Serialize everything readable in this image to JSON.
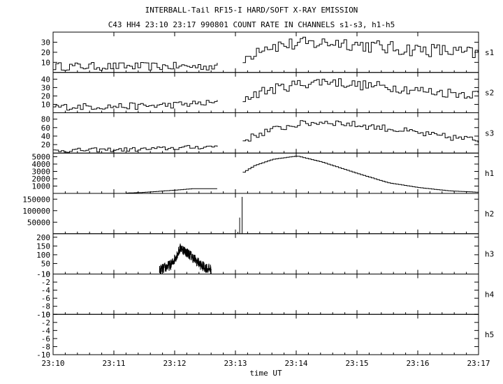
{
  "title_line1": "INTERBALL-Tail RF15-I HARD/SOFT X-RAY EMISSION",
  "title_line2": "C43 HH4 23:10 23:17 990801  COUNT RATE IN CHANNELS s1-s3, h1-h5",
  "chart_data": {
    "type": "line",
    "title": "INTERBALL-Tail RF15-I HARD/SOFT X-RAY EMISSION",
    "subtitle": "C43 HH4 23:10 23:17 990801  COUNT RATE IN CHANNELS s1-s3, h1-h5",
    "xlabel": "time UT",
    "x_range_minutes": [
      0,
      7
    ],
    "x_tick_labels": [
      "23:10",
      "23:11",
      "23:12",
      "23:13",
      "23:14",
      "23:15",
      "23:16",
      "23:17"
    ],
    "grid": false,
    "panels": [
      {
        "name": "s1",
        "ylim": [
          0,
          40
        ],
        "yticks": [
          10,
          20,
          30
        ],
        "kind": "step",
        "segments": [
          {
            "x_start": 0.0,
            "x_end": 2.7,
            "baseline": 6,
            "amp": 4
          },
          {
            "x_start": 3.12,
            "x_end": 7.0,
            "anchors": [
              [
                3.12,
                12
              ],
              [
                3.4,
                26
              ],
              [
                4.0,
                28
              ],
              [
                4.7,
                30
              ],
              [
                5.5,
                24
              ],
              [
                6.3,
                22
              ],
              [
                7.0,
                18
              ]
            ],
            "amp": 7
          }
        ]
      },
      {
        "name": "s2",
        "ylim": [
          0,
          48
        ],
        "yticks": [
          10,
          20,
          30,
          40
        ],
        "kind": "step",
        "segments": [
          {
            "x_start": 0.0,
            "x_end": 2.7,
            "anchors": [
              [
                0.0,
                7
              ],
              [
                1.5,
                8
              ],
              [
                2.7,
                12
              ]
            ],
            "amp": 4
          },
          {
            "x_start": 3.12,
            "x_end": 7.0,
            "anchors": [
              [
                3.12,
                17
              ],
              [
                3.4,
                25
              ],
              [
                4.0,
                34
              ],
              [
                4.5,
                38
              ],
              [
                5.0,
                33
              ],
              [
                5.5,
                31
              ],
              [
                6.2,
                25
              ],
              [
                7.0,
                22
              ]
            ],
            "amp": 6
          }
        ]
      },
      {
        "name": "s3",
        "ylim": [
          0,
          95
        ],
        "yticks": [
          20,
          40,
          60,
          80
        ],
        "kind": "step",
        "segments": [
          {
            "x_start": 0.0,
            "x_end": 2.7,
            "anchors": [
              [
                0.0,
                6
              ],
              [
                1.5,
                9
              ],
              [
                2.7,
                16
              ]
            ],
            "amp": 5
          },
          {
            "x_start": 3.12,
            "x_end": 7.0,
            "anchors": [
              [
                3.12,
                30
              ],
              [
                3.5,
                52
              ],
              [
                4.0,
                68
              ],
              [
                4.5,
                74
              ],
              [
                5.0,
                66
              ],
              [
                5.5,
                58
              ],
              [
                6.2,
                42
              ],
              [
                7.0,
                30
              ]
            ],
            "amp": 8
          }
        ]
      },
      {
        "name": "h1",
        "ylim": [
          0,
          5500
        ],
        "yticks": [
          1000,
          2000,
          3000,
          4000,
          5000
        ],
        "kind": "step",
        "segments": [
          {
            "x_start": 1.2,
            "x_end": 2.7,
            "anchors": [
              [
                1.2,
                50
              ],
              [
                1.5,
                150
              ],
              [
                2.0,
                450
              ],
              [
                2.3,
                650
              ],
              [
                2.7,
                640
              ]
            ],
            "amp": 0
          },
          {
            "x_start": 3.12,
            "x_end": 7.0,
            "anchors": [
              [
                3.12,
                2900
              ],
              [
                3.3,
                3800
              ],
              [
                3.6,
                4650
              ],
              [
                4.0,
                5100
              ],
              [
                4.4,
                4300
              ],
              [
                5.0,
                2700
              ],
              [
                5.5,
                1450
              ],
              [
                6.0,
                800
              ],
              [
                6.5,
                350
              ],
              [
                7.0,
                150
              ]
            ],
            "amp": 0
          }
        ]
      },
      {
        "name": "h2",
        "ylim": [
          0,
          175000
        ],
        "yticks": [
          50000,
          100000,
          150000
        ],
        "kind": "spikes",
        "spikes": [
          [
            3.04,
            8000
          ],
          [
            3.07,
            70000
          ],
          [
            3.11,
            160000
          ]
        ]
      },
      {
        "name": "h3",
        "ylim": [
          -10,
          220
        ],
        "yticks": [
          -10,
          50,
          100,
          150,
          200
        ],
        "kind": "noisy",
        "segments": [
          {
            "x_start": 1.75,
            "x_end": 2.6,
            "anchors": [
              [
                1.75,
                10
              ],
              [
                1.95,
                45
              ],
              [
                2.1,
                140
              ],
              [
                2.25,
                100
              ],
              [
                2.45,
                35
              ],
              [
                2.6,
                15
              ]
            ],
            "amp": 30
          }
        ]
      },
      {
        "name": "h4",
        "ylim": [
          -10,
          0
        ],
        "yticks": [
          -10,
          -8,
          -6,
          -4,
          -2,
          0
        ],
        "kind": "empty"
      },
      {
        "name": "h5",
        "ylim": [
          -10,
          0
        ],
        "yticks": [
          -10,
          -8,
          -6,
          -4,
          -2,
          0
        ],
        "kind": "empty"
      }
    ]
  }
}
